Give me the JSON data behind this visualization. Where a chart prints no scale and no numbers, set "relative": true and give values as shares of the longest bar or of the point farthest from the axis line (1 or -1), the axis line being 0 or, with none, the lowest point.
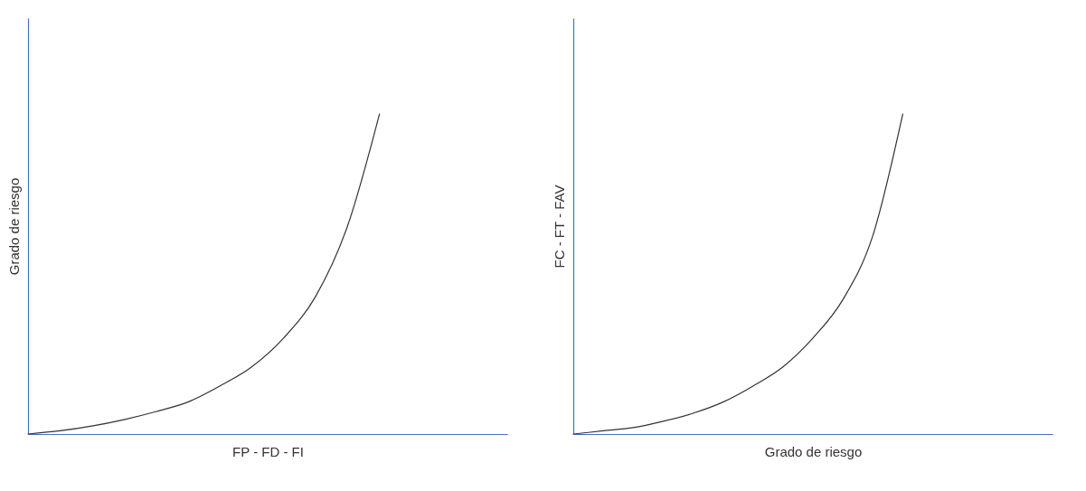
{
  "chart_data": [
    {
      "type": "line",
      "relative": true,
      "xlabel": "FP - FD - FI",
      "ylabel": "Grado de riesgo",
      "categories": [
        null,
        null,
        null,
        null,
        null,
        null,
        null,
        null,
        null,
        null,
        null,
        null,
        null,
        null,
        null,
        null
      ],
      "series": [
        {
          "color": "#333333",
          "values": [
            0,
            0.01,
            0.025,
            0.045,
            0.07,
            0.1,
            0.15,
            0.21,
            0.3,
            0.43,
            0.65,
            1,
            null,
            null,
            null,
            null
          ]
        }
      ]
    },
    {
      "type": "line",
      "relative": true,
      "xlabel": "Grado de riesgo",
      "ylabel": "FC - FT - FAV",
      "categories": [
        null,
        null,
        null,
        null,
        null,
        null,
        null,
        null,
        null,
        null,
        null,
        null,
        null,
        null,
        null,
        null,
        null
      ],
      "series": [
        {
          "color": "#333333",
          "values": [
            0,
            0.01,
            0.02,
            0.04,
            0.065,
            0.1,
            0.15,
            0.21,
            0.3,
            0.42,
            0.62,
            1,
            null,
            null,
            null,
            null,
            null
          ]
        }
      ]
    }
  ]
}
